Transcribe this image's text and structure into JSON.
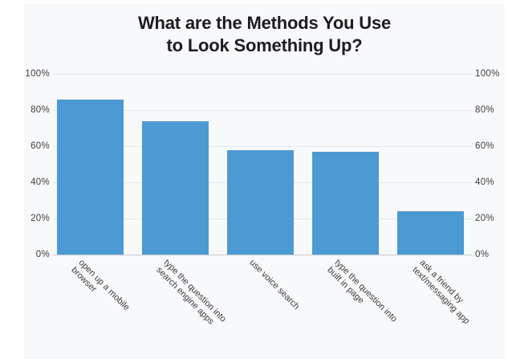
{
  "chart_data": {
    "type": "bar",
    "title": "What are the Methods You Use to Look Something Up?",
    "title_lines": [
      "What are the Methods You Use",
      "to Look Something Up?"
    ],
    "categories": [
      "open up a mobile browser",
      "type the question into search engine apps",
      "use voice search",
      "type the question into built in page",
      "ask a friend by text/messaging app"
    ],
    "category_lines": [
      [
        "open up a mobile",
        "browser"
      ],
      [
        "type the question into",
        "search engine apps"
      ],
      [
        "use voice search"
      ],
      [
        "type the question into",
        "built in page"
      ],
      [
        "ask a friend by",
        "text/messaging app"
      ]
    ],
    "values": [
      86,
      74,
      58,
      57,
      24
    ],
    "unit": "%",
    "xlabel": "",
    "ylabel": "",
    "ylim": [
      0,
      100
    ],
    "ytick_values": [
      0,
      20,
      40,
      60,
      80,
      100
    ],
    "ytick_labels": [
      "0%",
      "20%",
      "40%",
      "60%",
      "80%",
      "100%"
    ],
    "y_axis_labels_sides": "both",
    "grid": true,
    "legend": "none",
    "colors": {
      "bar": "#4c9ad3",
      "panel_background": "#f8f9fb",
      "page_background": "#ffffff",
      "gridline": "#e5e6e9",
      "axis_baseline": "#c8c9cc",
      "title_text": "#1d1d1f",
      "tick_text": "#3e3e3e"
    }
  }
}
